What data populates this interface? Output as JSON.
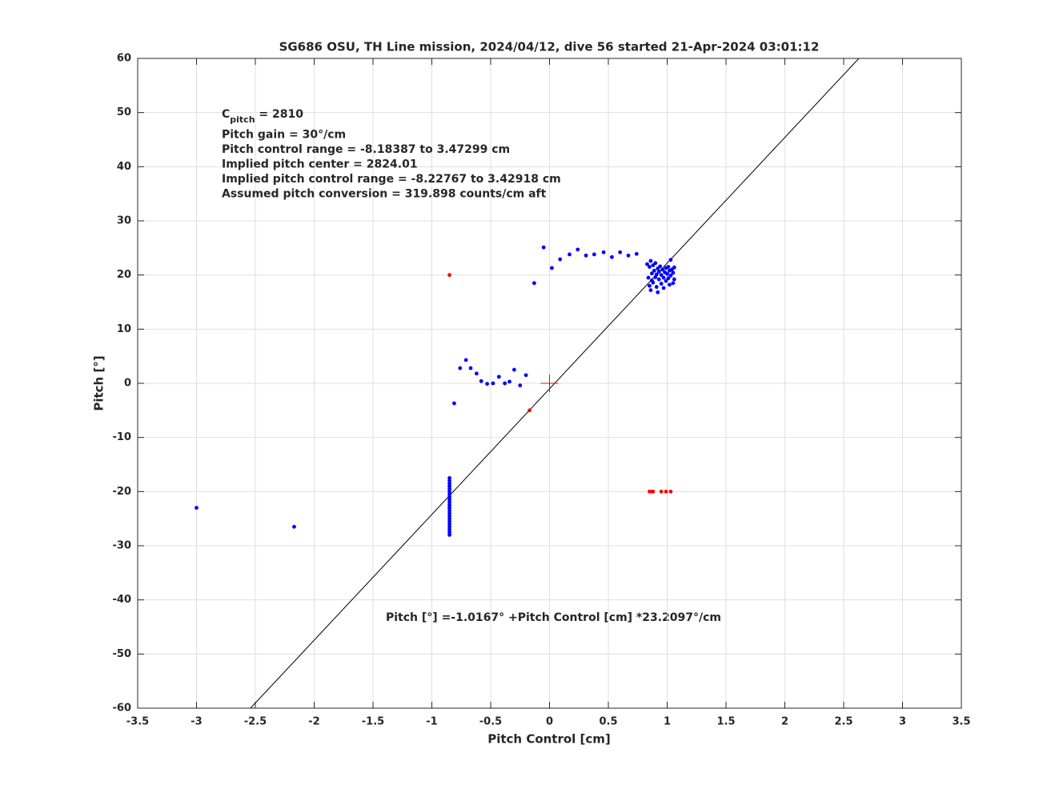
{
  "chart_data": {
    "type": "scatter",
    "title": "SG686 OSU, TH Line mission, 2024/04/12, dive 56 started 21-Apr-2024 03:01:12",
    "xlabel": "Pitch Control [cm]",
    "ylabel": "Pitch [°]",
    "xlim": [
      -3.5,
      3.5
    ],
    "ylim": [
      -60,
      60
    ],
    "xticks": [
      -3.5,
      -3,
      -2.5,
      -2,
      -1.5,
      -1,
      -0.5,
      0,
      0.5,
      1,
      1.5,
      2,
      2.5,
      3,
      3.5
    ],
    "yticks": [
      -60,
      -50,
      -40,
      -30,
      -20,
      -10,
      0,
      10,
      20,
      30,
      40,
      50,
      60
    ],
    "grid": true,
    "annotations": [
      {
        "text": "C",
        "subscript": "pitch",
        "suffix": " = 2810"
      },
      {
        "text": "Pitch gain = 30°/cm"
      },
      {
        "text": "Pitch control range = -8.18387 to 3.47299 cm"
      },
      {
        "text": "Implied pitch center = 2824.01"
      },
      {
        "text": "Implied pitch control range = -8.22767 to 3.42918 cm"
      },
      {
        "text": "Assumed pitch conversion = 319.898 counts/cm aft"
      }
    ],
    "equation": "Pitch [°] =-1.0167° +Pitch Control [cm] *23.2097°/cm",
    "fit_line": {
      "color": "#000000",
      "x": [
        -2.5413,
        2.629
      ],
      "values": [
        -60,
        60
      ]
    },
    "center_marker": {
      "color": "#ff0000",
      "x": 0,
      "y": 0
    },
    "series": [
      {
        "color": "#0000ff",
        "x": [
          -3,
          -2.17,
          -0.81,
          -0.76,
          -0.71,
          -0.67,
          -0.62,
          -0.58,
          -0.53,
          -0.48,
          -0.43,
          -0.38,
          -0.34,
          -0.3,
          -0.25,
          -0.2,
          -0.13,
          -0.05,
          0.02,
          0.09,
          0.17,
          0.24,
          0.31,
          0.38,
          0.46,
          0.53,
          0.6,
          0.67,
          0.74,
          -0.85,
          -0.85,
          -0.85,
          -0.85,
          -0.85,
          -0.85,
          -0.85,
          -0.85,
          -0.85,
          -0.85,
          -0.85,
          -0.85,
          -0.85,
          -0.85,
          -0.85,
          -0.85,
          -0.85,
          -0.85,
          -0.85,
          -0.85,
          -0.85,
          -0.85,
          0.83,
          0.84,
          0.85,
          0.85,
          0.86,
          0.86,
          0.87,
          0.87,
          0.88,
          0.88,
          0.89,
          0.9,
          0.9,
          0.91,
          0.91,
          0.92,
          0.92,
          0.93,
          0.93,
          0.94,
          0.95,
          0.95,
          0.96,
          0.97,
          0.97,
          0.98,
          0.99,
          0.99,
          1.0,
          1.01,
          1.01,
          1.02,
          1.02,
          1.03,
          1.03,
          1.04,
          1.05,
          1.05,
          1.06,
          1.06
        ],
        "values": [
          -23,
          -26.5,
          -3.7,
          2.8,
          4.3,
          2.8,
          1.8,
          0.4,
          -0.1,
          0,
          1.2,
          0,
          0.3,
          2.5,
          -0.4,
          1.5,
          18.5,
          25.1,
          21.3,
          22.9,
          23.8,
          24.7,
          23.6,
          23.8,
          24.2,
          23.3,
          24.2,
          23.6,
          23.9,
          -17.5,
          -18,
          -18.5,
          -19,
          -19.5,
          -20,
          -20.5,
          -21,
          -21.5,
          -22,
          -22.5,
          -23,
          -23.5,
          -24,
          -24.5,
          -25,
          -25.5,
          -26,
          -26.5,
          -27,
          -27.5,
          -28,
          22,
          19.5,
          18,
          21.5,
          22.6,
          17.2,
          20.3,
          19,
          21.8,
          18.6,
          20.8,
          19.6,
          22.2,
          17.8,
          20.1,
          21.2,
          16.8,
          19.2,
          20.6,
          21.6,
          18.4,
          20,
          21,
          19.5,
          17.6,
          20.5,
          21.3,
          18.9,
          20.2,
          19.4,
          21.5,
          20.8,
          18.2,
          22.8,
          19.9,
          21,
          18.5,
          20.4,
          21.4,
          19.2
        ]
      },
      {
        "color": "#ff0000",
        "x": [
          -0.85,
          -0.17,
          0.85,
          0.87,
          0.88,
          0.95,
          0.99,
          1.03
        ],
        "values": [
          20,
          -5,
          -20,
          -20,
          -20,
          -20,
          -20,
          -20
        ]
      }
    ]
  }
}
